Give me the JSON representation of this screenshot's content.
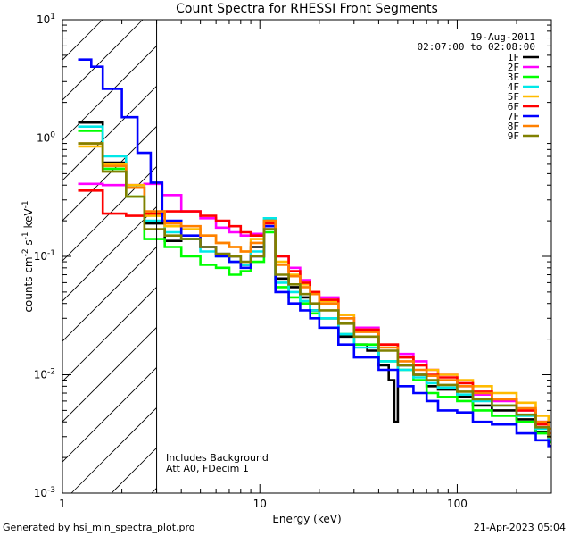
{
  "chart_data": {
    "type": "line",
    "title": "Count Spectra for RHESSI Front Segments",
    "xlabel": "Energy (keV)",
    "ylabel_parts": [
      "counts cm",
      "-2",
      " s",
      "-1",
      " keV",
      "-1"
    ],
    "x_scale": "log",
    "y_scale": "log",
    "xlim": [
      1,
      300
    ],
    "ylim": [
      0.001,
      10
    ],
    "x_ticks": [
      {
        "v": 1,
        "label": "1"
      },
      {
        "v": 10,
        "label": "10"
      },
      {
        "v": 100,
        "label": "100"
      }
    ],
    "y_ticks": [
      {
        "v": 0.001,
        "base": "10",
        "exp": "-3"
      },
      {
        "v": 0.01,
        "base": "10",
        "exp": "-2"
      },
      {
        "v": 0.1,
        "base": "10",
        "exp": "-1"
      },
      {
        "v": 1,
        "base": "10",
        "exp": "0"
      },
      {
        "v": 10,
        "base": "10",
        "exp": "1"
      }
    ],
    "hatched_region": [
      1,
      3
    ],
    "date": "19-Aug-2011",
    "time_range": "02:07:00 to 02:08:00",
    "notes": [
      "Includes Background",
      "Att A0, FDecim 1"
    ],
    "series": [
      {
        "name": "1F",
        "color": "#000000",
        "pts": [
          [
            1.2,
            1.35
          ],
          [
            1.6,
            0.62
          ],
          [
            2.1,
            0.38
          ],
          [
            2.6,
            0.19
          ],
          [
            3.3,
            0.135
          ],
          [
            4,
            0.14
          ],
          [
            5,
            0.12
          ],
          [
            6,
            0.105
          ],
          [
            7,
            0.1
          ],
          [
            8,
            0.085
          ],
          [
            9,
            0.12
          ],
          [
            10.5,
            0.2
          ],
          [
            12,
            0.065
          ],
          [
            14,
            0.055
          ],
          [
            16,
            0.045
          ],
          [
            18,
            0.035
          ],
          [
            20,
            0.03
          ],
          [
            25,
            0.021
          ],
          [
            30,
            0.018
          ],
          [
            35,
            0.016
          ],
          [
            40,
            0.012
          ],
          [
            45,
            0.009
          ],
          [
            48,
            0.004
          ],
          [
            50,
            0.012
          ],
          [
            60,
            0.01
          ],
          [
            70,
            0.008
          ],
          [
            80,
            0.0075
          ],
          [
            100,
            0.0065
          ],
          [
            120,
            0.0055
          ],
          [
            150,
            0.005
          ],
          [
            200,
            0.0042
          ],
          [
            250,
            0.0033
          ],
          [
            290,
            0.0028
          ]
        ]
      },
      {
        "name": "2F",
        "color": "#ff00ff",
        "pts": [
          [
            1.2,
            0.41
          ],
          [
            1.6,
            0.4
          ],
          [
            2.1,
            0.4
          ],
          [
            2.6,
            0.41
          ],
          [
            3.2,
            0.33
          ],
          [
            4,
            0.24
          ],
          [
            5,
            0.21
          ],
          [
            6,
            0.175
          ],
          [
            7,
            0.16
          ],
          [
            8,
            0.15
          ],
          [
            9,
            0.155
          ],
          [
            10.5,
            0.17
          ],
          [
            12,
            0.1
          ],
          [
            14,
            0.08
          ],
          [
            16,
            0.063
          ],
          [
            18,
            0.05
          ],
          [
            20,
            0.045
          ],
          [
            25,
            0.032
          ],
          [
            30,
            0.025
          ],
          [
            40,
            0.018
          ],
          [
            50,
            0.015
          ],
          [
            60,
            0.013
          ],
          [
            70,
            0.011
          ],
          [
            80,
            0.01
          ],
          [
            100,
            0.008
          ],
          [
            120,
            0.0068
          ],
          [
            150,
            0.006
          ],
          [
            200,
            0.005
          ],
          [
            250,
            0.004
          ],
          [
            290,
            0.0032
          ]
        ]
      },
      {
        "name": "3F",
        "color": "#00ff00",
        "pts": [
          [
            1.2,
            1.15
          ],
          [
            1.6,
            0.55
          ],
          [
            2.1,
            0.32
          ],
          [
            2.6,
            0.14
          ],
          [
            3.3,
            0.12
          ],
          [
            4,
            0.1
          ],
          [
            5,
            0.085
          ],
          [
            6,
            0.08
          ],
          [
            7,
            0.07
          ],
          [
            8,
            0.075
          ],
          [
            9,
            0.09
          ],
          [
            10.5,
            0.16
          ],
          [
            12,
            0.055
          ],
          [
            14,
            0.045
          ],
          [
            16,
            0.04
          ],
          [
            18,
            0.033
          ],
          [
            20,
            0.03
          ],
          [
            25,
            0.022
          ],
          [
            30,
            0.018
          ],
          [
            40,
            0.013
          ],
          [
            50,
            0.011
          ],
          [
            60,
            0.009
          ],
          [
            70,
            0.007
          ],
          [
            80,
            0.0065
          ],
          [
            100,
            0.006
          ],
          [
            120,
            0.005
          ],
          [
            150,
            0.0045
          ],
          [
            200,
            0.004
          ],
          [
            250,
            0.0032
          ],
          [
            290,
            0.0027
          ]
        ]
      },
      {
        "name": "4F",
        "color": "#00e8e8",
        "pts": [
          [
            1.2,
            1.25
          ],
          [
            1.6,
            0.7
          ],
          [
            2.1,
            0.38
          ],
          [
            2.6,
            0.2
          ],
          [
            3.3,
            0.16
          ],
          [
            4,
            0.14
          ],
          [
            5,
            0.11
          ],
          [
            6,
            0.1
          ],
          [
            7,
            0.09
          ],
          [
            8,
            0.085
          ],
          [
            9,
            0.11
          ],
          [
            10.5,
            0.21
          ],
          [
            12,
            0.06
          ],
          [
            14,
            0.05
          ],
          [
            16,
            0.042
          ],
          [
            18,
            0.035
          ],
          [
            20,
            0.03
          ],
          [
            25,
            0.022
          ],
          [
            30,
            0.017
          ],
          [
            40,
            0.013
          ],
          [
            50,
            0.011
          ],
          [
            60,
            0.0095
          ],
          [
            70,
            0.0085
          ],
          [
            80,
            0.0078
          ],
          [
            100,
            0.0068
          ],
          [
            120,
            0.006
          ],
          [
            150,
            0.0055
          ],
          [
            200,
            0.0045
          ],
          [
            250,
            0.0035
          ],
          [
            290,
            0.0028
          ]
        ]
      },
      {
        "name": "5F",
        "color": "#ffbb00",
        "pts": [
          [
            1.2,
            0.85
          ],
          [
            1.6,
            0.6
          ],
          [
            2.1,
            0.4
          ],
          [
            2.6,
            0.22
          ],
          [
            3.3,
            0.18
          ],
          [
            4,
            0.17
          ],
          [
            5,
            0.15
          ],
          [
            6,
            0.13
          ],
          [
            7,
            0.12
          ],
          [
            8,
            0.11
          ],
          [
            9,
            0.14
          ],
          [
            10.5,
            0.19
          ],
          [
            12,
            0.09
          ],
          [
            14,
            0.07
          ],
          [
            16,
            0.058
          ],
          [
            18,
            0.05
          ],
          [
            20,
            0.042
          ],
          [
            25,
            0.032
          ],
          [
            30,
            0.024
          ],
          [
            40,
            0.018
          ],
          [
            50,
            0.014
          ],
          [
            60,
            0.012
          ],
          [
            70,
            0.011
          ],
          [
            80,
            0.01
          ],
          [
            100,
            0.009
          ],
          [
            120,
            0.008
          ],
          [
            150,
            0.007
          ],
          [
            200,
            0.0058
          ],
          [
            250,
            0.0045
          ],
          [
            290,
            0.0035
          ]
        ]
      },
      {
        "name": "6F",
        "color": "#ff0000",
        "pts": [
          [
            1.2,
            0.36
          ],
          [
            1.6,
            0.23
          ],
          [
            2.1,
            0.22
          ],
          [
            2.6,
            0.23
          ],
          [
            3.3,
            0.24
          ],
          [
            4,
            0.24
          ],
          [
            5,
            0.22
          ],
          [
            6,
            0.2
          ],
          [
            7,
            0.18
          ],
          [
            8,
            0.16
          ],
          [
            9,
            0.15
          ],
          [
            10.5,
            0.19
          ],
          [
            12,
            0.1
          ],
          [
            14,
            0.075
          ],
          [
            16,
            0.06
          ],
          [
            18,
            0.05
          ],
          [
            20,
            0.043
          ],
          [
            25,
            0.03
          ],
          [
            30,
            0.024
          ],
          [
            40,
            0.018
          ],
          [
            50,
            0.014
          ],
          [
            60,
            0.012
          ],
          [
            70,
            0.01
          ],
          [
            80,
            0.0095
          ],
          [
            100,
            0.0085
          ],
          [
            120,
            0.0072
          ],
          [
            150,
            0.0062
          ],
          [
            200,
            0.005
          ],
          [
            250,
            0.0038
          ],
          [
            290,
            0.003
          ]
        ]
      },
      {
        "name": "7F",
        "color": "#0000ff",
        "pts": [
          [
            1.2,
            4.6
          ],
          [
            1.4,
            4.0
          ],
          [
            1.6,
            2.6
          ],
          [
            2.0,
            1.5
          ],
          [
            2.4,
            0.75
          ],
          [
            2.8,
            0.42
          ],
          [
            3.2,
            0.2
          ],
          [
            4,
            0.15
          ],
          [
            5,
            0.12
          ],
          [
            6,
            0.1
          ],
          [
            7,
            0.09
          ],
          [
            8,
            0.08
          ],
          [
            9,
            0.1
          ],
          [
            10.5,
            0.18
          ],
          [
            12,
            0.05
          ],
          [
            14,
            0.04
          ],
          [
            16,
            0.035
          ],
          [
            18,
            0.03
          ],
          [
            20,
            0.025
          ],
          [
            25,
            0.018
          ],
          [
            30,
            0.014
          ],
          [
            40,
            0.011
          ],
          [
            50,
            0.008
          ],
          [
            60,
            0.007
          ],
          [
            70,
            0.006
          ],
          [
            80,
            0.005
          ],
          [
            100,
            0.0048
          ],
          [
            120,
            0.004
          ],
          [
            150,
            0.0038
          ],
          [
            200,
            0.0032
          ],
          [
            250,
            0.0028
          ],
          [
            290,
            0.0025
          ]
        ]
      },
      {
        "name": "8F",
        "color": "#ff8000",
        "pts": [
          [
            1.2,
            0.9
          ],
          [
            1.6,
            0.58
          ],
          [
            2.1,
            0.38
          ],
          [
            2.6,
            0.24
          ],
          [
            3.3,
            0.19
          ],
          [
            4,
            0.18
          ],
          [
            5,
            0.15
          ],
          [
            6,
            0.13
          ],
          [
            7,
            0.12
          ],
          [
            8,
            0.11
          ],
          [
            9,
            0.13
          ],
          [
            10.5,
            0.2
          ],
          [
            12,
            0.085
          ],
          [
            14,
            0.068
          ],
          [
            16,
            0.055
          ],
          [
            18,
            0.048
          ],
          [
            20,
            0.04
          ],
          [
            25,
            0.03
          ],
          [
            30,
            0.023
          ],
          [
            40,
            0.017
          ],
          [
            50,
            0.013
          ],
          [
            60,
            0.011
          ],
          [
            70,
            0.0098
          ],
          [
            80,
            0.009
          ],
          [
            100,
            0.008
          ],
          [
            120,
            0.007
          ],
          [
            150,
            0.0062
          ],
          [
            200,
            0.0052
          ],
          [
            250,
            0.004
          ],
          [
            290,
            0.0032
          ]
        ]
      },
      {
        "name": "9F",
        "color": "#808000",
        "pts": [
          [
            1.2,
            0.9
          ],
          [
            1.6,
            0.52
          ],
          [
            2.1,
            0.32
          ],
          [
            2.6,
            0.17
          ],
          [
            3.3,
            0.15
          ],
          [
            4,
            0.14
          ],
          [
            5,
            0.12
          ],
          [
            6,
            0.105
          ],
          [
            7,
            0.1
          ],
          [
            8,
            0.09
          ],
          [
            9,
            0.1
          ],
          [
            10.5,
            0.17
          ],
          [
            12,
            0.07
          ],
          [
            14,
            0.058
          ],
          [
            16,
            0.048
          ],
          [
            18,
            0.04
          ],
          [
            20,
            0.035
          ],
          [
            25,
            0.027
          ],
          [
            30,
            0.021
          ],
          [
            40,
            0.016
          ],
          [
            50,
            0.012
          ],
          [
            60,
            0.01
          ],
          [
            70,
            0.009
          ],
          [
            80,
            0.0082
          ],
          [
            100,
            0.0072
          ],
          [
            120,
            0.0062
          ],
          [
            150,
            0.0055
          ],
          [
            200,
            0.0046
          ],
          [
            250,
            0.0036
          ],
          [
            290,
            0.003
          ]
        ]
      }
    ]
  },
  "footer": {
    "generated_by": "Generated by hsi_min_spectra_plot.pro",
    "timestamp": "21-Apr-2023 05:04"
  }
}
